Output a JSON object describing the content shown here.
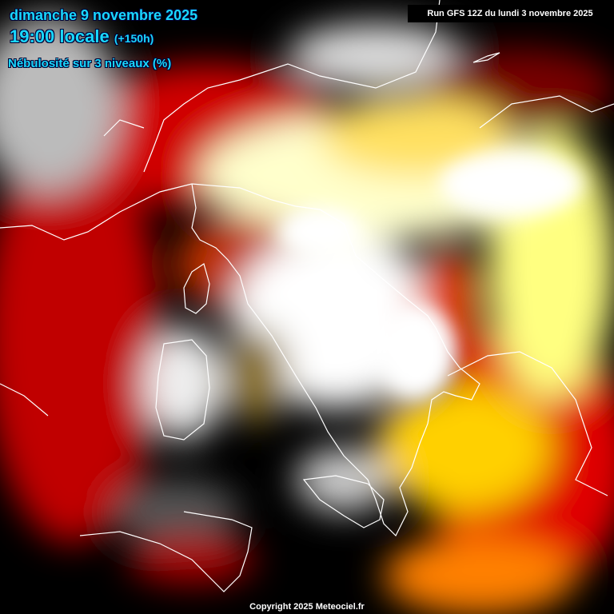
{
  "header": {
    "date": "dimanche 9 novembre 2025",
    "time": "19:00 locale",
    "lead": "(+150h)",
    "parameter": "Nébulosité sur 3 niveaux (%)"
  },
  "run_info": "Run GFS 12Z du lundi 3 novembre 2025",
  "copyright": "Copyright 2025 Meteociel.fr",
  "colors": {
    "title": "#19d8ff",
    "clear": "#000000",
    "low": "#cc0000",
    "mid": "#ffff00",
    "overcast": "#ffffff",
    "coastline": "#ffffff"
  }
}
